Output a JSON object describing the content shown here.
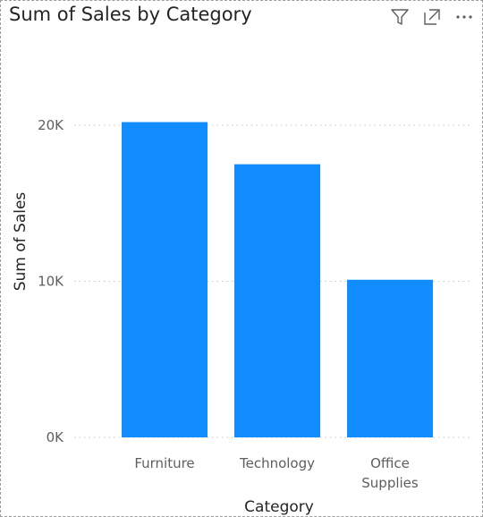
{
  "visual": {
    "title": "Sum of Sales by Category",
    "header_icons": [
      "filter-icon",
      "focus-mode-icon",
      "more-options-icon"
    ]
  },
  "colors": {
    "bar": "#118DFF",
    "grid": "#c8c6c4",
    "text": "#605e5c",
    "title": "#252423"
  },
  "chart_data": {
    "type": "bar",
    "title": "Sum of Sales by Category",
    "xlabel": "Category",
    "ylabel": "Sum of Sales",
    "categories": [
      "Furniture",
      "Technology",
      "Office Supplies"
    ],
    "category_lines": [
      [
        "Furniture"
      ],
      [
        "Technology"
      ],
      [
        "Office",
        "Supplies"
      ]
    ],
    "values": [
      20200,
      17500,
      10100
    ],
    "ylim": [
      0,
      20000
    ],
    "yticks": [
      0,
      10000,
      20000
    ],
    "ytick_labels": [
      "0K",
      "10K",
      "20K"
    ],
    "grid": true,
    "legend": "none"
  }
}
